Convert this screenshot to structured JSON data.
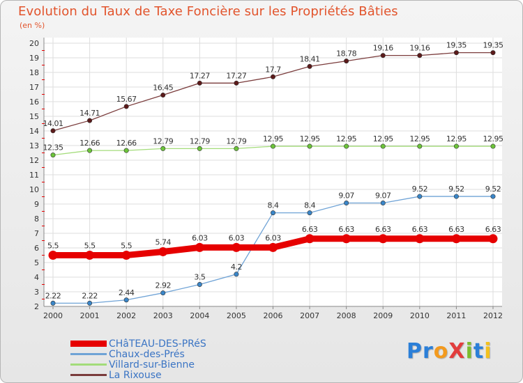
{
  "title": "Evolution du Taux de Taxe Foncière sur les Propriétés Bâties",
  "unit_label": "(en %)",
  "logo": {
    "text": "Proxiti",
    "letters": [
      {
        "ch": "P",
        "color": "#2b7fd8"
      },
      {
        "ch": "r",
        "color": "#2b7fd8"
      },
      {
        "ch": "o",
        "color": "#f39a1e"
      },
      {
        "ch": "X",
        "color": "#e23d3d"
      },
      {
        "ch": "i",
        "color": "#7cbc2e"
      },
      {
        "ch": "t",
        "color": "#2b7fd8"
      },
      {
        "ch": "i",
        "color": "#f3c11e"
      }
    ]
  },
  "chart_data": {
    "type": "line",
    "title": "Evolution du Taux de Taxe Foncière sur les Propriétés Bâties",
    "ylabel": "(en %)",
    "xlabel": "",
    "ylim": [
      2,
      20
    ],
    "yticks": [
      2,
      3,
      4,
      5,
      6,
      7,
      8,
      9,
      10,
      11,
      12,
      13,
      14,
      15,
      16,
      17,
      18,
      19,
      20
    ],
    "grid": true,
    "legend_position": "bottom-left",
    "x": [
      "2000",
      "2001",
      "2002",
      "2003",
      "2004",
      "2005",
      "2006",
      "2007",
      "2008",
      "2009",
      "2010",
      "2011",
      "2012"
    ],
    "series": [
      {
        "name": "CHâTEAU-DES-PRéS",
        "color": "#e60000",
        "emphasis": true,
        "values": [
          5.5,
          5.5,
          5.5,
          5.74,
          6.03,
          6.03,
          6.03,
          6.63,
          6.63,
          6.63,
          6.63,
          6.63,
          6.63
        ],
        "labels": [
          "5.5",
          "5.5",
          "5.5",
          "5.74",
          "6.03",
          "6.03",
          "6.03",
          "6.63",
          "6.63",
          "6.63",
          "6.63",
          "6.63",
          "6.63"
        ]
      },
      {
        "name": "Chaux-des-Prés",
        "color": "#6fa3d6",
        "marker": "#3a86c8",
        "values": [
          2.22,
          2.22,
          2.44,
          2.92,
          3.5,
          4.2,
          8.4,
          8.4,
          9.07,
          9.07,
          9.52,
          9.52,
          9.52
        ],
        "labels": [
          "2.22",
          "2.22",
          "2.44",
          "2.92",
          "3.5",
          "4.2",
          "8.4",
          "8.4",
          "9.07",
          "9.07",
          "9.52",
          "9.52",
          "9.52"
        ]
      },
      {
        "name": "Villard-sur-Bienne",
        "color": "#a3dc7a",
        "marker": "#6cc43a",
        "values": [
          12.35,
          12.66,
          12.66,
          12.79,
          12.79,
          12.79,
          12.95,
          12.95,
          12.95,
          12.95,
          12.95,
          12.95,
          12.95
        ],
        "labels": [
          "12.35",
          "12.66",
          "12.66",
          "12.79",
          "12.79",
          "12.79",
          "12.95",
          "12.95",
          "12.95",
          "12.95",
          "12.95",
          "12.95",
          "12.95"
        ]
      },
      {
        "name": "La Rixouse",
        "color": "#7a3b3b",
        "marker": "#5c1a1a",
        "values": [
          14.01,
          14.71,
          15.67,
          16.45,
          17.27,
          17.27,
          17.7,
          18.41,
          18.78,
          19.16,
          19.16,
          19.35,
          19.35
        ],
        "labels": [
          "14.01",
          "14.71",
          "15.67",
          "16.45",
          "17.27",
          "17.27",
          "17.7",
          "18.41",
          "18.78",
          "19.16",
          "19.16",
          "19.35",
          "19.35"
        ]
      }
    ]
  }
}
